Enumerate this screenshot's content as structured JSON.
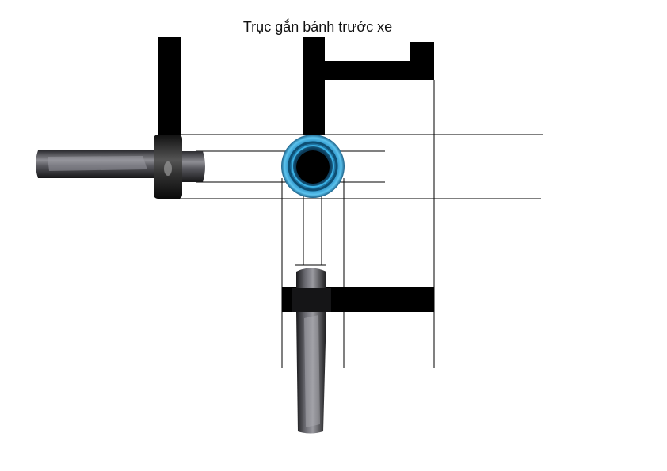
{
  "title": "Trục gắn bánh trước xe",
  "colors": {
    "background": "#ffffff",
    "silhouette": "#000000",
    "construction_line": "#000000",
    "metal_dark": "#1b1b1d",
    "metal_mid": "#4a4a50",
    "metal_light": "#b8b8bc",
    "bushing_blue": "#2a8fc4",
    "bushing_blue_light": "#5cc3ee"
  }
}
